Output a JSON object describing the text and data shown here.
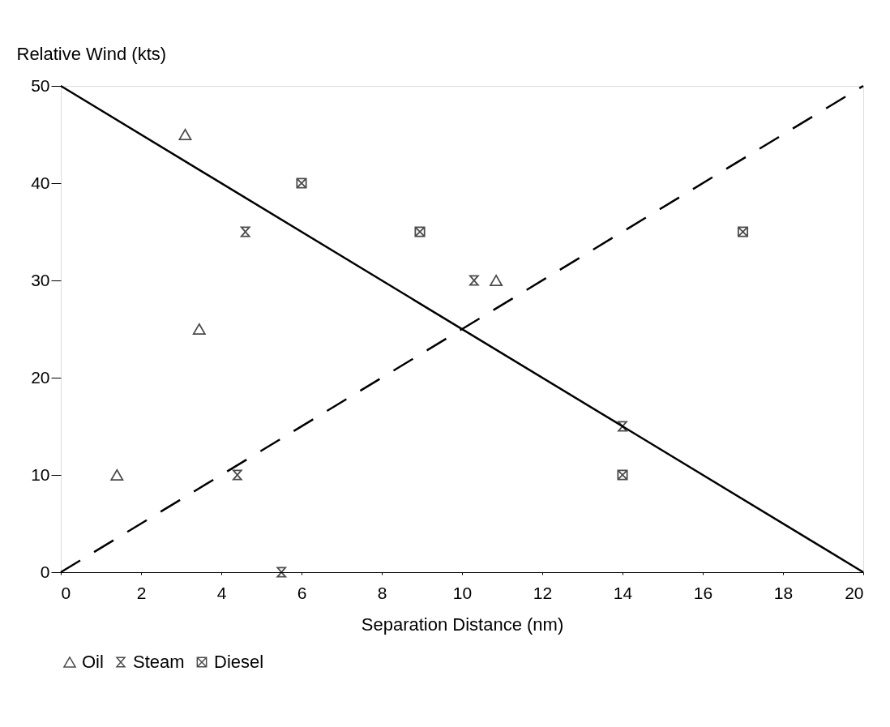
{
  "chart_data": {
    "type": "scatter",
    "xlabel": "Separation Distance (nm)",
    "ylabel": "Relative Wind (kts)",
    "xlim": [
      0,
      20
    ],
    "xticks": [
      0,
      2,
      4,
      6,
      8,
      10,
      12,
      14,
      16,
      18,
      20
    ],
    "ylim": [
      0,
      50
    ],
    "yticks": [
      0,
      10,
      20,
      30,
      40,
      50
    ],
    "grid": false,
    "legend": "bottom",
    "series": [
      {
        "name": "Oil",
        "color": "#000000",
        "marker": "triangle",
        "x": [
          3.1,
          3.45,
          1.4,
          10.85
        ],
        "values": [
          45,
          25,
          10,
          30
        ]
      },
      {
        "name": "Steam",
        "color": "#000000",
        "x": [
          4.6,
          4.4,
          5.5,
          10.3,
          14
        ],
        "values": [
          35,
          10,
          0,
          30,
          15
        ]
      },
      {
        "name": "Diesel",
        "color": "#000000",
        "x": [
          6,
          8.95,
          17,
          14
        ],
        "values": [
          40,
          35,
          35,
          10
        ]
      },
      {
        "type": "line",
        "color": "#000000",
        "line_style": "solid",
        "x": [
          0,
          20
        ],
        "values": [
          50,
          0
        ]
      },
      {
        "type": "line",
        "color": "#000000",
        "line_style": "dashed",
        "x": [
          0,
          20
        ],
        "values": [
          0,
          50
        ]
      }
    ]
  }
}
